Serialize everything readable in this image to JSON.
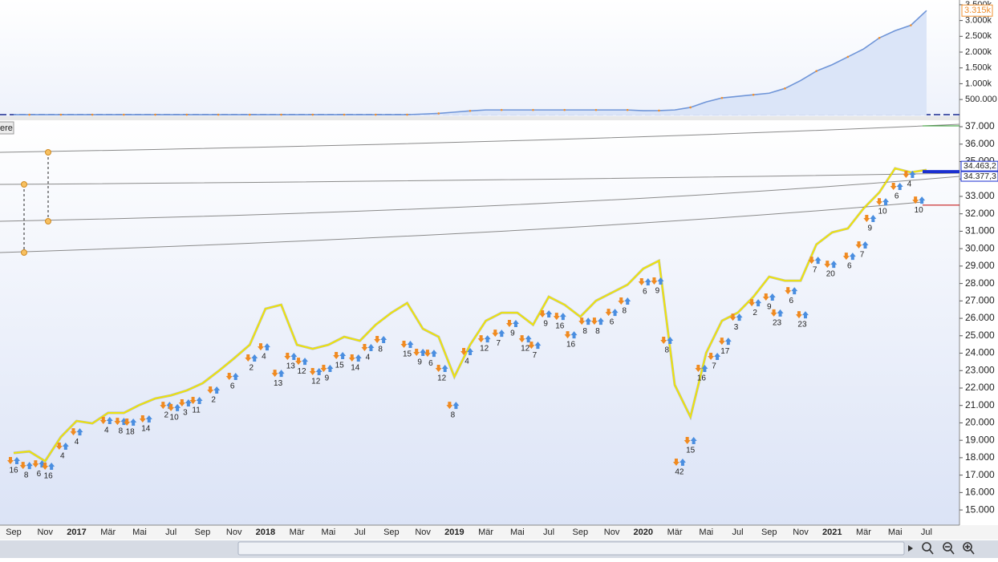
{
  "chart_data": [
    {
      "type": "area",
      "series": [
        {
          "color": "#6f95d8",
          "values": [
            20000,
            20000,
            20000,
            20000,
            20000,
            20000,
            20000,
            20000,
            20000,
            20000,
            20000,
            20000,
            20000,
            20000,
            20000,
            20000,
            20000,
            20000,
            20000,
            20000,
            20000,
            20000,
            20000,
            20000,
            20000,
            20000,
            40000,
            60000,
            100000,
            140000,
            170000,
            170000,
            170000,
            170000,
            170000,
            170000,
            170000,
            170000,
            170000,
            170000,
            145000,
            150000,
            170000,
            250000,
            424000,
            550000,
            600000,
            650000,
            700000,
            850000,
            1100000,
            1400000,
            1600000,
            1850000,
            2100000,
            2450000,
            2680000,
            2850000,
            3315000
          ]
        }
      ],
      "ylim": [
        -30000,
        3650000
      ],
      "yticks": [
        {
          "value": 500000,
          "label": "500.000"
        },
        {
          "value": 1000000,
          "label": "1.000k"
        },
        {
          "value": 1500000,
          "label": "1.500k"
        },
        {
          "value": 2000000,
          "label": "2.000k"
        },
        {
          "value": 2500000,
          "label": "2.500k"
        },
        {
          "value": 3000000,
          "label": "3.000k"
        },
        {
          "value": 3500000,
          "label": "3.500k"
        }
      ],
      "last_value": {
        "value": 3315000,
        "label": "3.315k"
      }
    },
    {
      "type": "line",
      "categories": [
        "Sep",
        null,
        "Nov",
        null,
        "2017",
        null,
        "Mär",
        null,
        "Mai",
        null,
        "Jul",
        null,
        "Sep",
        null,
        "Nov",
        null,
        "2018",
        null,
        "Mär",
        null,
        "Mai",
        null,
        "Jul",
        null,
        "Sep",
        null,
        "Nov",
        null,
        "2019",
        null,
        "Mär",
        null,
        "Mai",
        null,
        "Jul",
        null,
        "Sep",
        null,
        "Nov",
        null,
        "2020",
        null,
        "Mär",
        null,
        "Mai",
        null,
        "Jul",
        null,
        "Sep",
        null,
        "Nov",
        null,
        "2021",
        null,
        "Mär",
        null,
        "Mai",
        null,
        "Jul"
      ],
      "series": [
        {
          "color": "#f2e600",
          "values": [
            18270,
            18360,
            17800,
            19190,
            20110,
            19970,
            20570,
            20570,
            21030,
            21400,
            21580,
            21860,
            22270,
            22960,
            23700,
            24480,
            26550,
            26780,
            24480,
            24250,
            24480,
            24940,
            24710,
            25630,
            26320,
            26880,
            25400,
            24940,
            22640,
            24480,
            25860,
            26320,
            26320,
            25630,
            27240,
            26780,
            26090,
            27010,
            27470,
            27930,
            28850,
            29310,
            22180,
            20340,
            24020,
            25860,
            26320,
            27240,
            28390,
            28160,
            28160,
            30240,
            30930,
            31160,
            32310,
            33230,
            34610,
            34380,
            34520
          ]
        }
      ],
      "ylim": [
        14130,
        37370
      ],
      "yticks": [
        {
          "value": 15000,
          "label": "15.000"
        },
        {
          "value": 16000,
          "label": "16.000"
        },
        {
          "value": 17000,
          "label": "17.000"
        },
        {
          "value": 18000,
          "label": "18.000"
        },
        {
          "value": 19000,
          "label": "19.000"
        },
        {
          "value": 20000,
          "label": "20.000"
        },
        {
          "value": 21000,
          "label": "21.000"
        },
        {
          "value": 22000,
          "label": "22.000"
        },
        {
          "value": 23000,
          "label": "23.000"
        },
        {
          "value": 24000,
          "label": "24.000"
        },
        {
          "value": 25000,
          "label": "25.000"
        },
        {
          "value": 26000,
          "label": "26.000"
        },
        {
          "value": 27000,
          "label": "27.000"
        },
        {
          "value": 28000,
          "label": "28.000"
        },
        {
          "value": 29000,
          "label": "29.000"
        },
        {
          "value": 30000,
          "label": "30.000"
        },
        {
          "value": 31000,
          "label": "31.000"
        },
        {
          "value": 32000,
          "label": "32.000"
        },
        {
          "value": 33000,
          "label": "33.000"
        },
        {
          "value": 34000,
          "label": "34.000"
        },
        {
          "value": 35000,
          "label": "35.000"
        },
        {
          "value": 36000,
          "label": "36.000"
        },
        {
          "value": 37000,
          "label": "37.000"
        }
      ],
      "levels": [
        {
          "value": 34463.2,
          "label": "34.463,2",
          "color": "#1a2fd0"
        },
        {
          "value": 34377.3,
          "label": "34.377,3",
          "color": "#1a2fd0"
        },
        {
          "value": 32500,
          "color": "#c00000"
        },
        {
          "value": 37050,
          "color": "#2a9a2a"
        }
      ],
      "signals": {
        "at": [
          0.0,
          0.8,
          1.6,
          2.2,
          3.1,
          4.0,
          5.9,
          6.8,
          7.4,
          8.4,
          9.7,
          10.2,
          10.9,
          11.6,
          12.7,
          13.9,
          15.1,
          15.9,
          16.8,
          17.6,
          18.3,
          19.2,
          19.9,
          20.7,
          21.7,
          22.5,
          23.3,
          25.0,
          25.8,
          26.5,
          27.2,
          27.9,
          28.8,
          29.9,
          30.8,
          31.7,
          32.5,
          33.1,
          33.8,
          34.7,
          35.4,
          36.3,
          37.1,
          38.0,
          38.8,
          40.1,
          40.9,
          41.5,
          42.3,
          43.0,
          43.7,
          44.5,
          45.2,
          45.9,
          47.1,
          48.0,
          48.5,
          49.4,
          50.1,
          50.9,
          51.9,
          53.1,
          53.9,
          54.4,
          55.2,
          56.1,
          56.9,
          57.5
        ],
        "price": [
          17260,
          16980,
          17070,
          16935,
          18090,
          18910,
          19560,
          19510,
          19470,
          19650,
          20430,
          20300,
          20570,
          20710,
          21310,
          22090,
          23150,
          23790,
          22270,
          23240,
          22960,
          22370,
          22550,
          23290,
          23150,
          23750,
          24210,
          23930,
          23470,
          23420,
          22550,
          20430,
          23520,
          24250,
          24570,
          25130,
          24250,
          23880,
          25680,
          25540,
          24480,
          25260,
          25260,
          25770,
          26420,
          27520,
          27570,
          24160,
          17170,
          18410,
          22550,
          23240,
          24110,
          25490,
          26320,
          26650,
          25730,
          27010,
          25630,
          28760,
          28530,
          28990,
          29640,
          31160,
          32120,
          33000,
          33690,
          32210
        ],
        "count": [
          16,
          8,
          6,
          16,
          4,
          4,
          4,
          8,
          18,
          14,
          2,
          10,
          3,
          11,
          2,
          6,
          2,
          4,
          13,
          13,
          12,
          12,
          9,
          15,
          14,
          4,
          8,
          15,
          9,
          6,
          12,
          8,
          4,
          12,
          7,
          9,
          12,
          7,
          9,
          16,
          16,
          8,
          8,
          6,
          8,
          6,
          9,
          8,
          42,
          15,
          16,
          7,
          17,
          3,
          2,
          9,
          23,
          6,
          23,
          7,
          20,
          6,
          7,
          9,
          10,
          6,
          4,
          10
        ]
      }
    }
  ],
  "ui": {
    "button": "ere"
  }
}
